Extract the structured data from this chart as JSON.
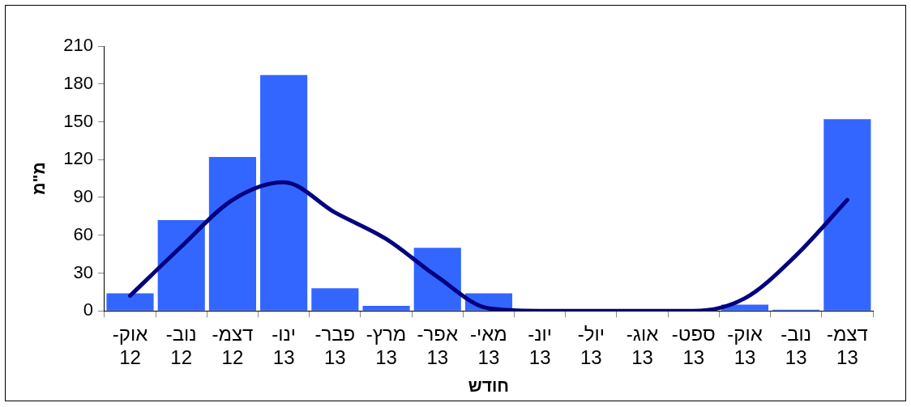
{
  "chart_data": {
    "type": "bar",
    "xlabel": "חודש",
    "ylabel": "מ\"מ",
    "categories": [
      "אוק-12",
      "נוב-12",
      "דצמ-12",
      "ינו-13",
      "פבר-13",
      "מרץ-13",
      "אפר-13",
      "מאי-13",
      "יונ-13",
      "יול-13",
      "אוג-13",
      "ספט-13",
      "אוק-13",
      "נוב-13",
      "דצמ-13"
    ],
    "series": [
      {
        "color": "#3366ff",
        "values": [
          14,
          72,
          122,
          187,
          18,
          4,
          50,
          14,
          0,
          0,
          0,
          0,
          5,
          1,
          152
        ]
      },
      {
        "type": "line",
        "color": "#000080",
        "values": [
          12,
          51,
          88,
          102,
          78,
          57,
          27,
          2,
          0,
          0,
          0,
          0,
          10,
          44,
          88
        ]
      }
    ],
    "ylim": [
      0,
      210
    ],
    "yticks": [
      0,
      30,
      60,
      90,
      120,
      150,
      180,
      210
    ],
    "grid": false,
    "legend": false,
    "marker": "none",
    "line_style": "solid"
  }
}
